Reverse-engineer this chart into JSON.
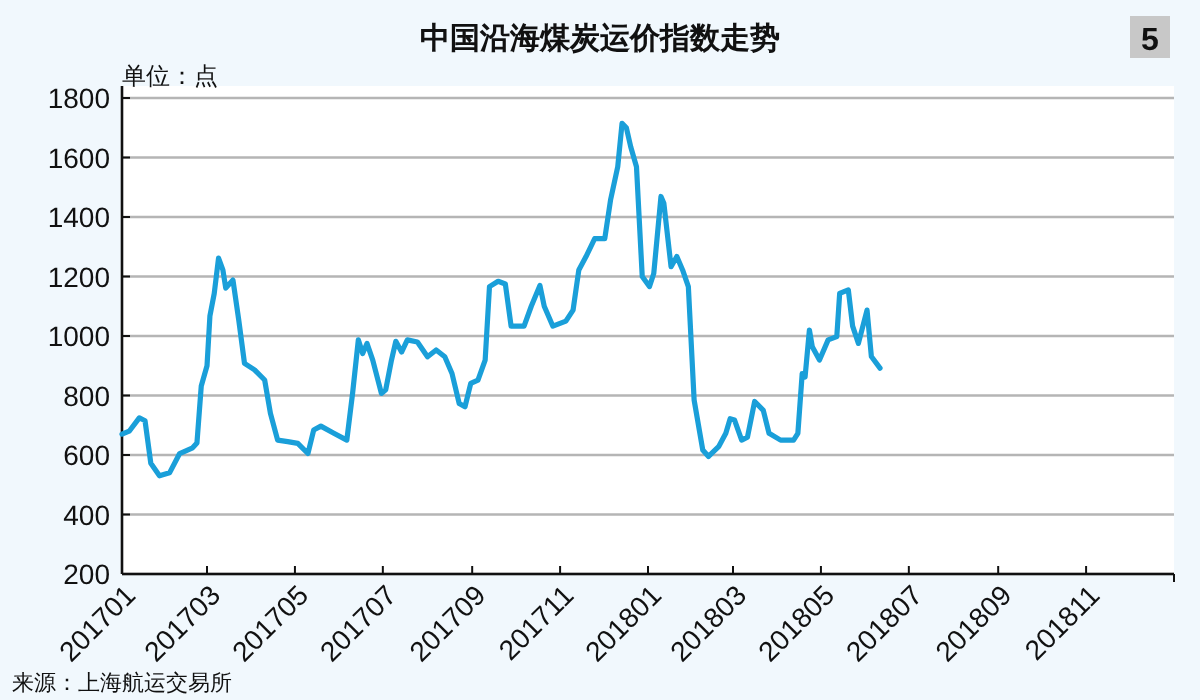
{
  "chart_data": {
    "type": "line",
    "title": "中国沿海煤炭运价指数走势",
    "ylabel": "单位：点",
    "annotations": [
      "5",
      "来源：上海航运交易所"
    ],
    "x": [
      "2017-01-01",
      "2017-01-06",
      "2017-01-13",
      "2017-01-17",
      "2017-01-21",
      "2017-01-27",
      "2017-02-03",
      "2017-02-10",
      "2017-02-19",
      "2017-02-22",
      "2017-02-25",
      "2017-03-01",
      "2017-03-03",
      "2017-03-06",
      "2017-03-09",
      "2017-03-12",
      "2017-03-14",
      "2017-03-19",
      "2017-03-23",
      "2017-03-27",
      "2017-04-03",
      "2017-04-10",
      "2017-04-14",
      "2017-04-19",
      "2017-04-26",
      "2017-05-03",
      "2017-05-10",
      "2017-05-14",
      "2017-05-19",
      "2017-05-28",
      "2017-06-06",
      "2017-06-10",
      "2017-06-14",
      "2017-06-17",
      "2017-06-20",
      "2017-06-24",
      "2017-06-30",
      "2017-07-03",
      "2017-07-07",
      "2017-07-10",
      "2017-07-14",
      "2017-07-18",
      "2017-07-25",
      "2017-08-01",
      "2017-08-07",
      "2017-08-13",
      "2017-08-18",
      "2017-08-23",
      "2017-08-27",
      "2017-08-31",
      "2017-09-05",
      "2017-09-10",
      "2017-09-13",
      "2017-09-19",
      "2017-09-24",
      "2017-09-28",
      "2017-10-07",
      "2017-10-12",
      "2017-10-18",
      "2017-10-21",
      "2017-10-27",
      "2017-11-05",
      "2017-11-10",
      "2017-11-14",
      "2017-11-19",
      "2017-11-25",
      "2017-12-02",
      "2017-12-06",
      "2017-12-11",
      "2017-12-14",
      "2017-12-17",
      "2017-12-20",
      "2017-12-24",
      "2017-12-28",
      "2018-01-02",
      "2018-01-05",
      "2018-01-10",
      "2018-01-12",
      "2018-01-17",
      "2018-01-21",
      "2018-01-25",
      "2018-01-29",
      "2018-02-02",
      "2018-02-08",
      "2018-02-12",
      "2018-02-19",
      "2018-02-24",
      "2018-02-27",
      "2018-03-02",
      "2018-03-07",
      "2018-03-11",
      "2018-03-16",
      "2018-03-22",
      "2018-03-26",
      "2018-04-03",
      "2018-04-12",
      "2018-04-15",
      "2018-04-18",
      "2018-04-20",
      "2018-04-23",
      "2018-04-25",
      "2018-04-30",
      "2018-05-06",
      "2018-05-12",
      "2018-05-14",
      "2018-05-20",
      "2018-05-23",
      "2018-05-27",
      "2018-06-02",
      "2018-06-05",
      "2018-06-11"
    ],
    "series": [
      {
        "color": "#1a9fd9",
        "values": [
          670,
          680,
          725,
          715,
          572,
          530,
          540,
          605,
          624,
          640,
          832,
          900,
          1067,
          1143,
          1262,
          1222,
          1161,
          1188,
          1054,
          908,
          886,
          852,
          740,
          650,
          645,
          639,
          605,
          684,
          697,
          673,
          650,
          807,
          987,
          941,
          975,
          919,
          807,
          819,
          919,
          982,
          946,
          987,
          980,
          930,
          953,
          930,
          874,
          773,
          762,
          841,
          852,
          919,
          1166,
          1184,
          1175,
          1033,
          1033,
          1100,
          1170,
          1100,
          1033,
          1050,
          1087,
          1222,
          1267,
          1327,
          1327,
          1457,
          1569,
          1715,
          1700,
          1636,
          1569,
          1200,
          1166,
          1210,
          1469,
          1446,
          1233,
          1267,
          1222,
          1166,
          785,
          617,
          595,
          628,
          673,
          722,
          718,
          650,
          660,
          780,
          750,
          673,
          650,
          650,
          673,
          874,
          862,
          1020,
          964,
          919,
          987,
          998,
          1143,
          1155,
          1033,
          975,
          1087,
          931,
          892
        ]
      }
    ],
    "xlim": [
      "2017-01-01",
      "2019-01-01"
    ],
    "xticks": [
      {
        "value": "2017-01-01",
        "label": "201701"
      },
      {
        "value": "2017-03-01",
        "label": "201703"
      },
      {
        "value": "2017-05-01",
        "label": "201705"
      },
      {
        "value": "2017-07-01",
        "label": "201707"
      },
      {
        "value": "2017-09-01",
        "label": "201709"
      },
      {
        "value": "2017-11-01",
        "label": "201711"
      },
      {
        "value": "2018-01-01",
        "label": "201801"
      },
      {
        "value": "2018-03-01",
        "label": "201803"
      },
      {
        "value": "2018-05-01",
        "label": "201805"
      },
      {
        "value": "2018-07-01",
        "label": "201807"
      },
      {
        "value": "2018-09-01",
        "label": "201809"
      },
      {
        "value": "2018-11-01",
        "label": "201811"
      }
    ],
    "ylim": [
      200,
      1800
    ],
    "yticks": [
      200,
      400,
      600,
      800,
      1000,
      1200,
      1400,
      1600,
      1800
    ],
    "grid": "y",
    "marker": "none",
    "line_style": "solid"
  }
}
